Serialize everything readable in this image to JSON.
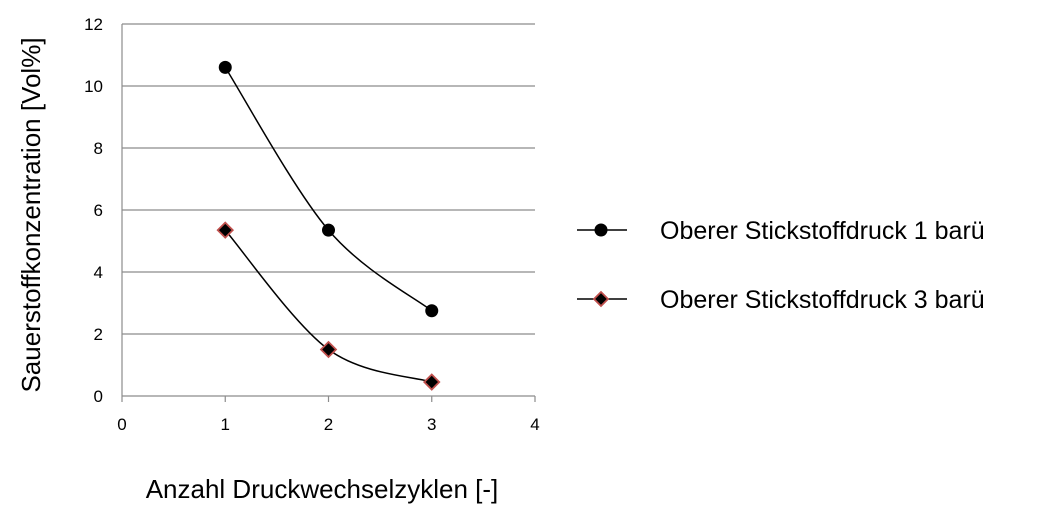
{
  "chart_data": {
    "type": "line",
    "title": "",
    "xlabel": "Anzahl Druckwechselzyklen [-]",
    "ylabel": "Sauerstoffkonzentration [Vol%]",
    "xlim": [
      0,
      4
    ],
    "ylim": [
      0,
      12
    ],
    "x_ticks": [
      "0",
      "1",
      "2",
      "3",
      "4"
    ],
    "y_ticks": [
      "0",
      "2",
      "4",
      "6",
      "8",
      "10",
      "12"
    ],
    "grid": "horizontal",
    "legend_position": "right",
    "series": [
      {
        "name": "Oberer Stickstoffdruck 1 barü",
        "x": [
          1,
          2,
          3
        ],
        "y": [
          10.6,
          5.35,
          2.75
        ],
        "marker": "circle",
        "color": "#000000"
      },
      {
        "name": "Oberer Stickstoffdruck 3 barü",
        "x": [
          1,
          2,
          3
        ],
        "y": [
          5.35,
          1.5,
          0.45
        ],
        "marker": "diamond",
        "color": "#000000",
        "marker_edge_color": "#c0504d"
      }
    ]
  }
}
